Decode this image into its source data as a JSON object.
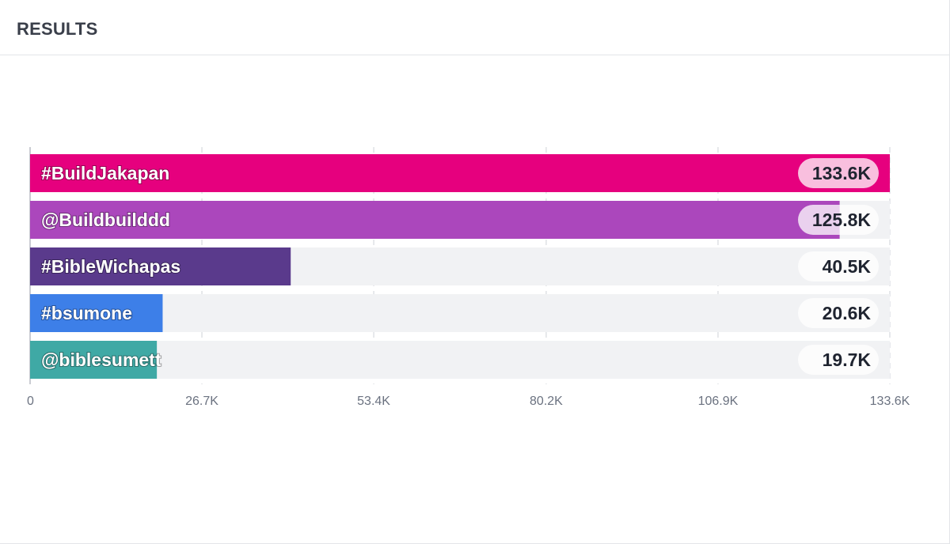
{
  "header": {
    "title": "RESULTS"
  },
  "chart_data": {
    "type": "bar",
    "orientation": "horizontal",
    "categories": [
      "#BuildJakapan",
      "@Buildbuilddd",
      "#BibleWichapas",
      "#bsumone",
      "@biblesumett"
    ],
    "values": [
      133.6,
      125.8,
      40.5,
      20.6,
      19.7
    ],
    "value_labels": [
      "133.6K",
      "125.8K",
      "40.5K",
      "20.6K",
      "19.7K"
    ],
    "colors": [
      "#e6007e",
      "#ab47bc",
      "#5a3a8c",
      "#3d7fe8",
      "#3fa9a5"
    ],
    "track_color": "#f1f2f4",
    "xlim": [
      0,
      133.6
    ],
    "xticks": [
      0,
      26.7,
      53.4,
      80.2,
      106.9,
      133.6
    ],
    "xtick_labels": [
      "0",
      "26.7K",
      "53.4K",
      "80.2K",
      "106.9K",
      "133.6K"
    ],
    "grid": true,
    "legend": "none"
  }
}
